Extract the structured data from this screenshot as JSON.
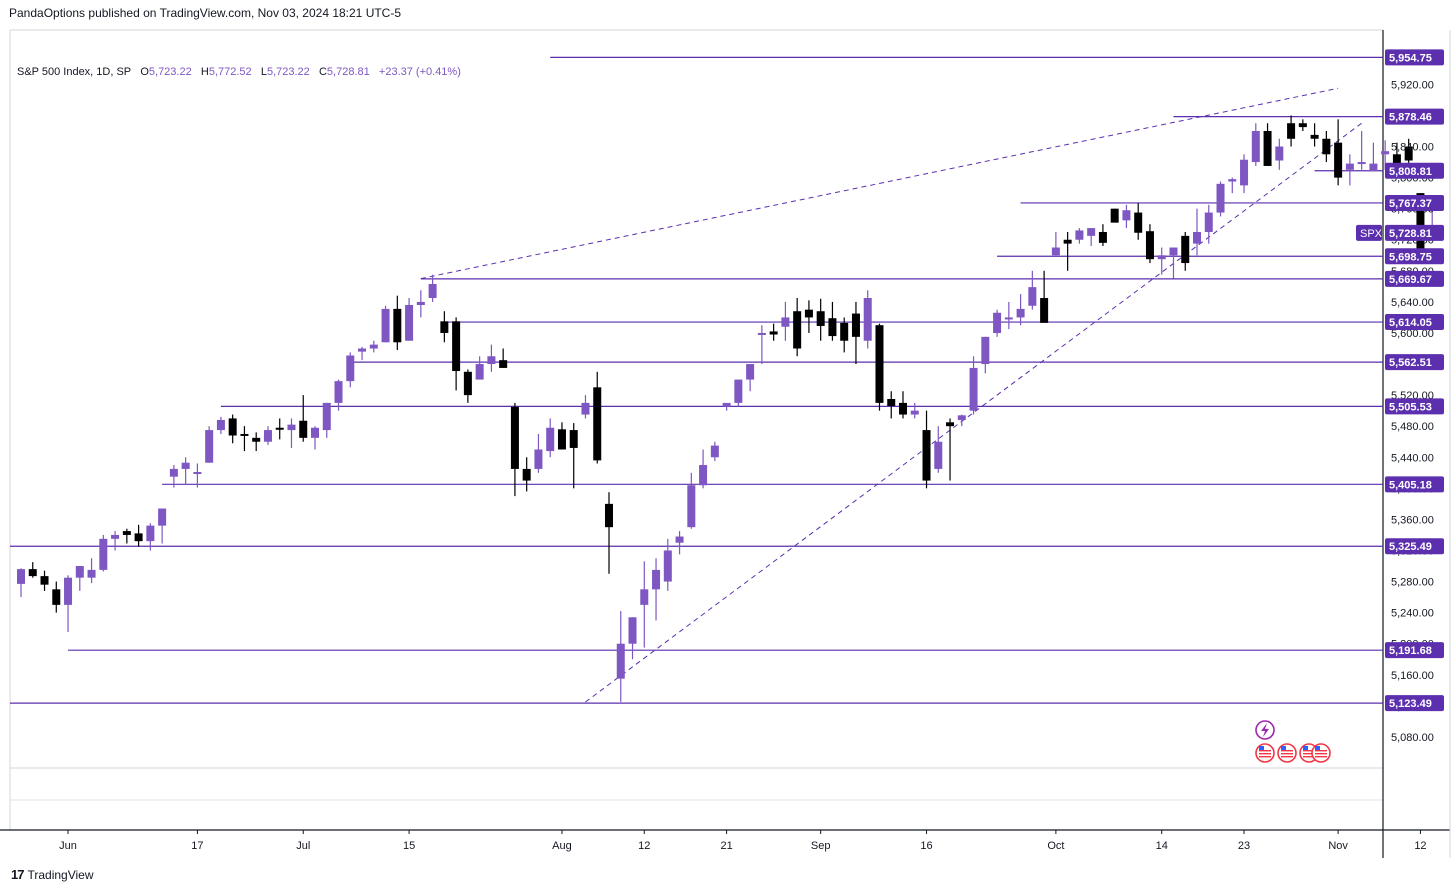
{
  "header": {
    "published": "PandaOptions published on TradingView.com, Nov 03, 2024 18:21 UTC-5"
  },
  "legend": {
    "title": "S&P 500 Index, 1D, SP",
    "o_label": "O",
    "o_value": "5,723.22",
    "h_label": "H",
    "h_value": "5,772.52",
    "l_label": "L",
    "l_value": "5,723.22",
    "c_label": "C",
    "c_value": "5,728.81",
    "change": "+23.37 (+0.41%)"
  },
  "footer": {
    "brand": "TradingView",
    "logo_glyph": "17"
  },
  "colors": {
    "up": "#7e57c2",
    "down": "#000000",
    "level": "#5b2fae",
    "label_bg": "#5b2fae",
    "grid": "#e0e3eb",
    "axis": "#131722"
  },
  "icons": [
    "lightning-icon",
    "us-flag-icon",
    "us-flag-icon",
    "us-flag-icon",
    "us-flag-icon"
  ],
  "chart_data": {
    "type": "candlestick",
    "symbol": "SPX",
    "ylim": [
      5040,
      5990
    ],
    "y_ticks": [
      "5,080.00",
      "5,120.00",
      "5,160.00",
      "5,200.00",
      "5,240.00",
      "5,280.00",
      "5,320.00",
      "5,360.00",
      "5,400.00",
      "5,440.00",
      "5,480.00",
      "5,520.00",
      "5,560.00",
      "5,600.00",
      "5,640.00",
      "5,680.00",
      "5,720.00",
      "5,760.00",
      "5,800.00",
      "5,840.00",
      "5,880.00",
      "5,920.00",
      "5,960.00"
    ],
    "x_ticks": [
      {
        "label": "Jun",
        "index": 4
      },
      {
        "label": "17",
        "index": 15
      },
      {
        "label": "Jul",
        "index": 24
      },
      {
        "label": "15",
        "index": 33
      },
      {
        "label": "Aug",
        "index": 46
      },
      {
        "label": "12",
        "index": 53
      },
      {
        "label": "21",
        "index": 60
      },
      {
        "label": "Sep",
        "index": 68
      },
      {
        "label": "16",
        "index": 77
      },
      {
        "label": "Oct",
        "index": 88
      },
      {
        "label": "14",
        "index": 97
      },
      {
        "label": "23",
        "index": 104
      },
      {
        "label": "Nov",
        "index": 112
      },
      {
        "label": "12",
        "index": 119
      }
    ],
    "levels": [
      {
        "price": 5954.75,
        "label": "5,954.75",
        "from_index": 45
      },
      {
        "price": 5878.46,
        "label": "5,878.46",
        "from_index": 98
      },
      {
        "price": 5808.81,
        "label": "5,808.81",
        "from_index": 110
      },
      {
        "price": 5767.37,
        "label": "5,767.37",
        "from_index": 85
      },
      {
        "price": 5698.75,
        "label": "5,698.75",
        "from_index": 83
      },
      {
        "price": 5669.67,
        "label": "5,669.67",
        "from_index": 34
      },
      {
        "price": 5614.05,
        "label": "5,614.05",
        "from_index": 36
      },
      {
        "price": 5562.51,
        "label": "5,562.51",
        "from_index": 28
      },
      {
        "price": 5505.53,
        "label": "5,505.53",
        "from_index": 17
      },
      {
        "price": 5405.18,
        "label": "5,405.18",
        "from_index": 12
      },
      {
        "price": 5325.49,
        "label": "5,325.49",
        "from_index": 0
      },
      {
        "price": 5191.68,
        "label": "5,191.68",
        "from_index": 4
      },
      {
        "price": 5123.49,
        "label": "5,123.49",
        "from_index": 0
      }
    ],
    "last_price": {
      "label": "SPX",
      "price": 5728.81,
      "value": "5,728.81"
    },
    "trendlines": [
      {
        "from": [
          34,
          5670
        ],
        "to": [
          112,
          5915
        ]
      },
      {
        "from": [
          48,
          5125
        ],
        "to": [
          114,
          5870
        ]
      }
    ],
    "candles": [
      [
        5277,
        5297,
        5260,
        5296
      ],
      [
        5296,
        5305,
        5285,
        5287
      ],
      [
        5287,
        5294,
        5268,
        5276
      ],
      [
        5270,
        5280,
        5240,
        5250
      ],
      [
        5250,
        5288,
        5215,
        5285
      ],
      [
        5285,
        5300,
        5268,
        5300
      ],
      [
        5285,
        5310,
        5278,
        5295
      ],
      [
        5295,
        5340,
        5293,
        5335
      ],
      [
        5335,
        5345,
        5320,
        5340
      ],
      [
        5345,
        5348,
        5329,
        5340
      ],
      [
        5342,
        5353,
        5325,
        5332
      ],
      [
        5332,
        5355,
        5320,
        5352
      ],
      [
        5352,
        5373,
        5329,
        5374
      ],
      [
        5415,
        5430,
        5401,
        5425
      ],
      [
        5425,
        5440,
        5405,
        5433
      ],
      [
        5420,
        5432,
        5401,
        5421
      ],
      [
        5433,
        5480,
        5433,
        5475
      ],
      [
        5475,
        5492,
        5470,
        5488
      ],
      [
        5490,
        5495,
        5458,
        5468
      ],
      [
        5470,
        5480,
        5448,
        5469
      ],
      [
        5465,
        5472,
        5448,
        5460
      ],
      [
        5460,
        5480,
        5456,
        5475
      ],
      [
        5478,
        5490,
        5463,
        5476
      ],
      [
        5475,
        5490,
        5452,
        5482
      ],
      [
        5487,
        5520,
        5460,
        5465
      ],
      [
        5465,
        5480,
        5450,
        5478
      ],
      [
        5475,
        5510,
        5465,
        5510
      ],
      [
        5510,
        5540,
        5500,
        5538
      ],
      [
        5538,
        5575,
        5530,
        5571
      ],
      [
        5576,
        5582,
        5565,
        5580
      ],
      [
        5580,
        5590,
        5575,
        5585
      ],
      [
        5588,
        5635,
        5588,
        5631
      ],
      [
        5631,
        5648,
        5578,
        5588
      ],
      [
        5590,
        5645,
        5590,
        5636
      ],
      [
        5636,
        5655,
        5620,
        5640
      ],
      [
        5645,
        5675,
        5640,
        5663
      ],
      [
        5615,
        5628,
        5588,
        5600
      ],
      [
        5615,
        5620,
        5526,
        5551
      ],
      [
        5550,
        5553,
        5510,
        5520
      ],
      [
        5540,
        5570,
        5540,
        5560
      ],
      [
        5560,
        5585,
        5550,
        5570
      ],
      [
        5565,
        5580,
        5555,
        5555
      ],
      [
        5505,
        5510,
        5390,
        5425
      ],
      [
        5425,
        5440,
        5396,
        5410
      ],
      [
        5425,
        5470,
        5420,
        5450
      ],
      [
        5448,
        5490,
        5440,
        5478
      ],
      [
        5476,
        5485,
        5455,
        5450
      ],
      [
        5475,
        5484,
        5400,
        5452
      ],
      [
        5495,
        5520,
        5490,
        5510
      ],
      [
        5530,
        5550,
        5432,
        5436
      ],
      [
        5380,
        5395,
        5290,
        5350
      ],
      [
        5155,
        5242,
        5125,
        5200
      ],
      [
        5200,
        5234,
        5180,
        5234
      ],
      [
        5250,
        5306,
        5195,
        5270
      ],
      [
        5270,
        5310,
        5230,
        5295
      ],
      [
        5280,
        5335,
        5268,
        5320
      ],
      [
        5330,
        5345,
        5315,
        5338
      ],
      [
        5350,
        5420,
        5348,
        5404
      ],
      [
        5404,
        5450,
        5400,
        5430
      ],
      [
        5440,
        5460,
        5435,
        5455
      ],
      [
        5505,
        5508,
        5500,
        5510
      ],
      [
        5510,
        5540,
        5505,
        5540
      ],
      [
        5540,
        5560,
        5525,
        5560
      ],
      [
        5600,
        5610,
        5560,
        5600
      ],
      [
        5602,
        5612,
        5590,
        5598
      ],
      [
        5608,
        5640,
        5590,
        5620
      ],
      [
        5628,
        5645,
        5570,
        5580
      ],
      [
        5630,
        5642,
        5600,
        5620
      ],
      [
        5628,
        5644,
        5590,
        5609
      ],
      [
        5619,
        5640,
        5590,
        5596
      ],
      [
        5613,
        5620,
        5575,
        5590
      ],
      [
        5625,
        5640,
        5560,
        5595
      ],
      [
        5590,
        5655,
        5580,
        5645
      ],
      [
        5610,
        5612,
        5500,
        5510
      ],
      [
        5515,
        5525,
        5490,
        5506
      ],
      [
        5510,
        5525,
        5490,
        5495
      ],
      [
        5495,
        5510,
        5490,
        5500
      ],
      [
        5475,
        5500,
        5400,
        5410
      ],
      [
        5425,
        5480,
        5420,
        5460
      ],
      [
        5485,
        5490,
        5410,
        5480
      ],
      [
        5488,
        5495,
        5480,
        5494
      ],
      [
        5500,
        5570,
        5495,
        5555
      ],
      [
        5560,
        5595,
        5548,
        5595
      ],
      [
        5600,
        5630,
        5595,
        5626
      ],
      [
        5620,
        5640,
        5605,
        5620
      ],
      [
        5620,
        5650,
        5610,
        5631
      ],
      [
        5635,
        5680,
        5630,
        5659
      ],
      [
        5645,
        5680,
        5620,
        5613
      ],
      [
        5700,
        5730,
        5700,
        5710
      ],
      [
        5720,
        5730,
        5680,
        5715
      ],
      [
        5720,
        5735,
        5715,
        5732
      ],
      [
        5725,
        5735,
        5712,
        5735
      ],
      [
        5730,
        5740,
        5712,
        5716
      ],
      [
        5760,
        5760,
        5745,
        5742
      ],
      [
        5745,
        5765,
        5735,
        5758
      ],
      [
        5755,
        5767,
        5720,
        5729
      ],
      [
        5731,
        5740,
        5690,
        5695
      ],
      [
        5695,
        5710,
        5675,
        5700
      ],
      [
        5700,
        5710,
        5670,
        5710
      ],
      [
        5725,
        5730,
        5680,
        5690
      ],
      [
        5715,
        5760,
        5700,
        5730
      ],
      [
        5730,
        5765,
        5715,
        5755
      ],
      [
        5755,
        5795,
        5750,
        5792
      ],
      [
        5795,
        5800,
        5780,
        5798
      ],
      [
        5790,
        5830,
        5780,
        5823
      ],
      [
        5820,
        5870,
        5815,
        5860
      ],
      [
        5860,
        5870,
        5815,
        5815
      ],
      [
        5822,
        5850,
        5810,
        5840
      ],
      [
        5870,
        5880,
        5840,
        5850
      ],
      [
        5870,
        5875,
        5860,
        5865
      ],
      [
        5855,
        5870,
        5840,
        5850
      ],
      [
        5850,
        5860,
        5820,
        5830
      ],
      [
        5845,
        5875,
        5790,
        5800
      ],
      [
        5810,
        5830,
        5790,
        5818
      ],
      [
        5818,
        5860,
        5810,
        5820
      ],
      [
        5808,
        5845,
        5810,
        5818
      ],
      [
        5830,
        5848,
        5810,
        5834
      ],
      [
        5830,
        5845,
        5800,
        5812
      ],
      [
        5840,
        5850,
        5810,
        5822
      ],
      [
        5780,
        5780,
        5700,
        5705
      ],
      [
        5723,
        5772,
        5723,
        5728
      ]
    ]
  }
}
